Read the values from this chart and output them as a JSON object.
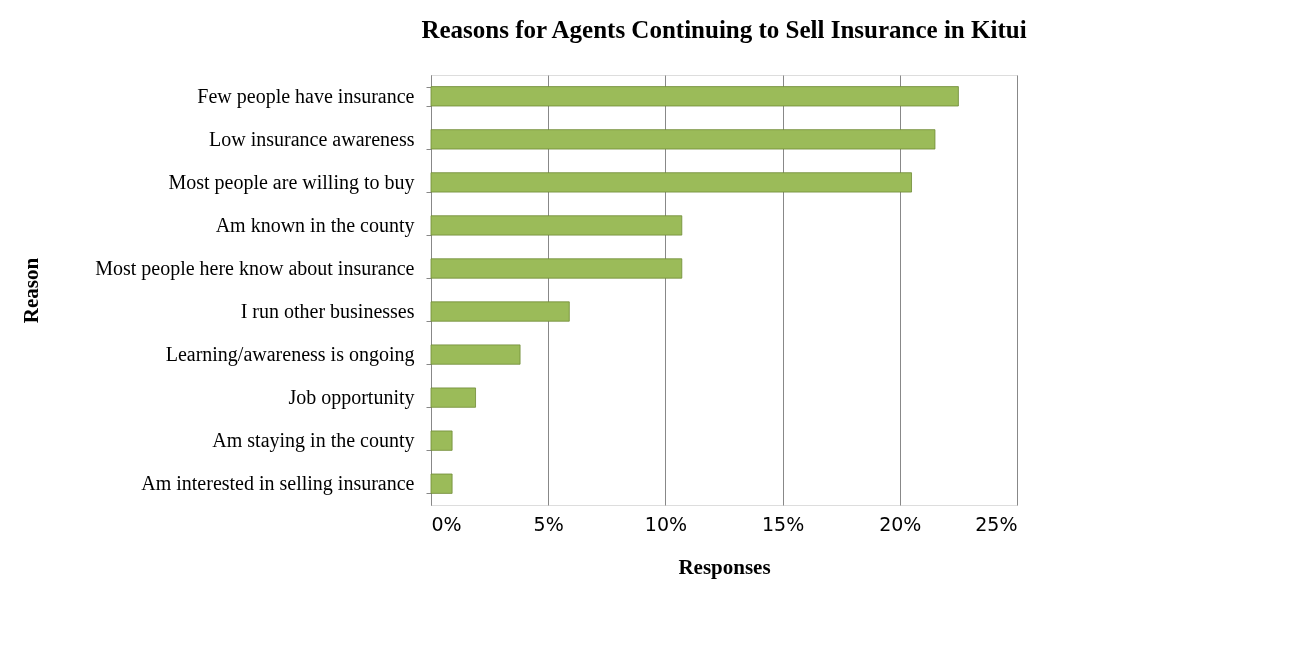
{
  "chart_data": {
    "type": "bar",
    "orientation": "horizontal",
    "title": "Reasons for Agents Continuing to Sell Insurance in Kitui",
    "xlabel": "Responses",
    "ylabel": "Reason",
    "categories": [
      "Few people have insurance",
      "Low insurance awareness",
      "Most people are willing to buy",
      "Am known in the county",
      "Most people here know about insurance",
      "I run other businesses",
      "Learning/awareness is ongoing",
      "Job opportunity",
      "Am staying in the county",
      "Am interested in selling insurance"
    ],
    "values": [
      22.5,
      21.5,
      20.5,
      10.7,
      10.7,
      5.9,
      3.8,
      1.9,
      0.9,
      0.9
    ],
    "color": "#9bbb59",
    "xlim": [
      0,
      25
    ],
    "xticks": [
      {
        "value": 0,
        "label": "0%"
      },
      {
        "value": 5,
        "label": "5%"
      },
      {
        "value": 10,
        "label": "10%"
      },
      {
        "value": 15,
        "label": "15%"
      },
      {
        "value": 20,
        "label": "20%"
      },
      {
        "value": 25,
        "label": "25%"
      }
    ],
    "grid": "x"
  }
}
